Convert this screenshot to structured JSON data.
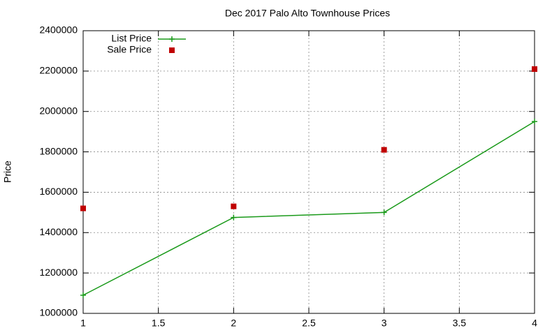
{
  "chart_data": {
    "type": "line",
    "title": "Dec 2017 Palo Alto Townhouse Prices",
    "y_label": "Price",
    "x": [
      1,
      2,
      3,
      4
    ],
    "series": [
      {
        "name": "List Price",
        "color": "#1a9a1a",
        "line": true,
        "marker": "plus",
        "values": [
          1090000,
          1475000,
          1500000,
          1950000
        ]
      },
      {
        "name": "Sale Price",
        "color": "#c00000",
        "line": false,
        "marker": "square",
        "values": [
          1520000,
          1530000,
          1810000,
          2210000
        ]
      }
    ],
    "xlim": [
      1,
      4
    ],
    "xticks": [
      1,
      1.5,
      2,
      2.5,
      3,
      3.5,
      4
    ],
    "ylim": [
      1000000,
      2400000
    ],
    "yticks": [
      1000000,
      1200000,
      1400000,
      1600000,
      1800000,
      2000000,
      2200000,
      2400000
    ],
    "grid": true,
    "legend": "top-left"
  }
}
